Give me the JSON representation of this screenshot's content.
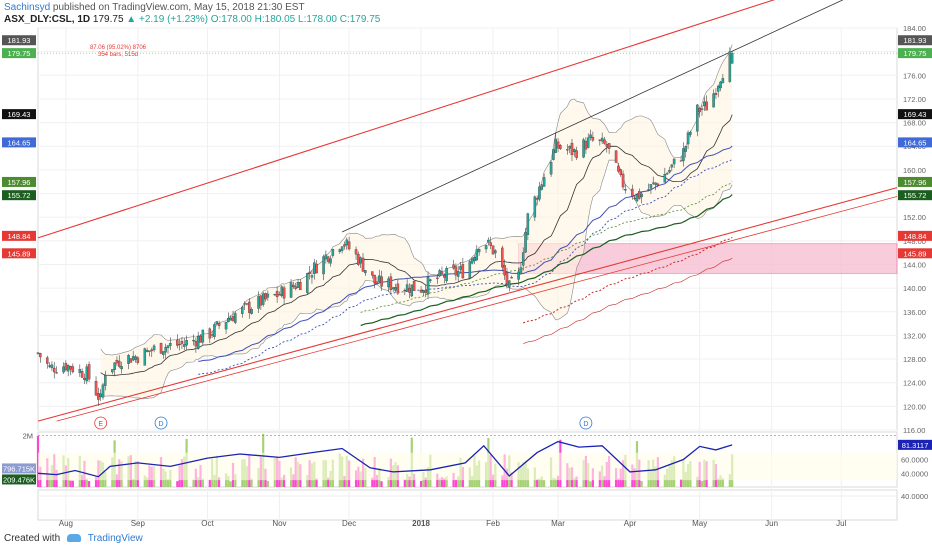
{
  "header": {
    "author": "Sachinsyd",
    "published_text": "published on TradingView.com, May 15, 2018 21:30 EST",
    "symbol": "ASX_DLY:CSL, 1D",
    "last": "179.75",
    "change_arrow": "▲",
    "change": "+2.19 (+1.23%)",
    "o": "O:178.00",
    "h": "H:180.05",
    "l": "L:178.00",
    "c": "C:179.75"
  },
  "footer": {
    "created_with": "Created with",
    "brand": "TradingView"
  },
  "measure": {
    "line1": "87.06 (95.02%) 8706",
    "line2": "354 bars, 515d"
  },
  "colors": {
    "up": "#26a69a",
    "down": "#ef5350",
    "channel": "#e53935",
    "trend": "#333333",
    "sma_blue": "#3f51b5",
    "sma_green": "#1b5e20",
    "bb": "#333333",
    "zone": "#f8bbd0",
    "rsi": "#1a23b6",
    "vol_pink": "#ff33cc",
    "vol_green": "#9ccc65"
  },
  "chart_data": {
    "type": "candlestick",
    "ylim": [
      116,
      184
    ],
    "x_range": [
      "2017-07-20",
      "2018-07-25"
    ],
    "price_ticks": [
      116,
      120,
      124,
      128,
      132,
      136,
      140,
      144,
      148,
      152,
      156,
      160,
      164,
      168,
      172,
      176,
      180,
      184
    ],
    "price_tick_labels": [
      "116.00",
      "120.00",
      "124.00",
      "128.00",
      "132.00",
      "136.00",
      "140.00",
      "144.00",
      "148.00",
      "152.00",
      "156.00",
      "160.00",
      "164.00",
      "168.00",
      "172.00",
      "176.00",
      "180.00",
      "184.00"
    ],
    "month_labels": [
      {
        "date": "2017-08-01",
        "label": "Aug"
      },
      {
        "date": "2017-09-01",
        "label": "Sep"
      },
      {
        "date": "2017-10-01",
        "label": "Oct"
      },
      {
        "date": "2017-11-01",
        "label": "Nov"
      },
      {
        "date": "2017-12-01",
        "label": "Dec"
      },
      {
        "date": "2018-01-01",
        "label": "2018"
      },
      {
        "date": "2018-02-01",
        "label": "Feb"
      },
      {
        "date": "2018-03-01",
        "label": "Mar"
      },
      {
        "date": "2018-04-01",
        "label": "Apr"
      },
      {
        "date": "2018-05-01",
        "label": "May"
      },
      {
        "date": "2018-06-01",
        "label": "Jun"
      },
      {
        "date": "2018-07-01",
        "label": "Jul"
      }
    ],
    "close_path": [
      [
        "2017-07-20",
        129.0
      ],
      [
        "2017-07-25",
        126.5
      ],
      [
        "2017-08-01",
        127.0
      ],
      [
        "2017-08-10",
        125.5
      ],
      [
        "2017-08-16",
        121.0
      ],
      [
        "2017-08-18",
        126.0
      ],
      [
        "2017-08-25",
        128.0
      ],
      [
        "2017-09-01",
        128.5
      ],
      [
        "2017-09-10",
        130.0
      ],
      [
        "2017-09-20",
        130.5
      ],
      [
        "2017-10-01",
        132.0
      ],
      [
        "2017-10-10",
        135.0
      ],
      [
        "2017-10-20",
        137.0
      ],
      [
        "2017-11-01",
        139.0
      ],
      [
        "2017-11-10",
        141.0
      ],
      [
        "2017-11-20",
        145.0
      ],
      [
        "2017-11-28",
        148.0
      ],
      [
        "2017-12-05",
        145.0
      ],
      [
        "2017-12-12",
        141.0
      ],
      [
        "2017-12-20",
        140.5
      ],
      [
        "2018-01-01",
        140.0
      ],
      [
        "2018-01-10",
        142.0
      ],
      [
        "2018-01-20",
        143.0
      ],
      [
        "2018-01-27",
        148.5
      ],
      [
        "2018-02-02",
        146.0
      ],
      [
        "2018-02-08",
        140.0
      ],
      [
        "2018-02-12",
        142.0
      ],
      [
        "2018-02-16",
        152.0
      ],
      [
        "2018-02-22",
        158.0
      ],
      [
        "2018-02-28",
        164.0
      ],
      [
        "2018-03-08",
        163.0
      ],
      [
        "2018-03-15",
        165.0
      ],
      [
        "2018-03-22",
        164.0
      ],
      [
        "2018-03-28",
        158.0
      ],
      [
        "2018-04-04",
        155.5
      ],
      [
        "2018-04-10",
        157.0
      ],
      [
        "2018-04-18",
        160.0
      ],
      [
        "2018-04-24",
        163.0
      ],
      [
        "2018-04-30",
        170.0
      ],
      [
        "2018-05-05",
        171.0
      ],
      [
        "2018-05-10",
        176.0
      ],
      [
        "2018-05-15",
        179.75
      ]
    ],
    "price_boxes": [
      {
        "value": 181.93,
        "label": "181.93",
        "color": "#555555"
      },
      {
        "value": 179.75,
        "label": "179.75",
        "color": "#4caf50"
      },
      {
        "value": 169.43,
        "label": "169.43",
        "color": "#111111"
      },
      {
        "value": 164.65,
        "label": "164.65",
        "color": "#3f6ad8"
      },
      {
        "value": 157.96,
        "label": "157.96",
        "color": "#4c8c2f"
      },
      {
        "value": 155.72,
        "label": "155.72",
        "color": "#1b5e20"
      },
      {
        "value": 148.84,
        "label": "148.84",
        "color": "#e53935"
      },
      {
        "value": 145.89,
        "label": "145.89",
        "color": "#e53935"
      }
    ],
    "zone": {
      "from": "2018-02-12",
      "to": "2018-07-25",
      "low": 142.5,
      "high": 147.5
    },
    "events": [
      {
        "date": "2017-08-16",
        "label": "E",
        "kind": "earnings"
      },
      {
        "date": "2017-09-11",
        "label": "D",
        "kind": "dividend"
      },
      {
        "date": "2018-03-13",
        "label": "D",
        "kind": "dividend"
      }
    ],
    "lower_pane": {
      "ylim": [
        20,
        100
      ],
      "rsi_last": {
        "value": 81.3117,
        "label": "81.3117"
      },
      "ticks": [
        {
          "value": 40,
          "label": "40.0000"
        },
        {
          "value": 60,
          "label": "60.0000"
        }
      ],
      "volume_labels": [
        {
          "label": "2M",
          "value": 95
        },
        {
          "label": "796.715K",
          "value": 47,
          "color": "#8e9bd1"
        },
        {
          "label": "209.476K",
          "value": 31,
          "color": "#1b5e20"
        }
      ],
      "rsi_path": [
        [
          "2017-07-20",
          40
        ],
        [
          "2017-07-28",
          38
        ],
        [
          "2017-08-05",
          44
        ],
        [
          "2017-08-15",
          35
        ],
        [
          "2017-08-20",
          50
        ],
        [
          "2017-09-01",
          55
        ],
        [
          "2017-09-15",
          50
        ],
        [
          "2017-10-01",
          62
        ],
        [
          "2017-10-15",
          68
        ],
        [
          "2017-11-01",
          63
        ],
        [
          "2017-11-15",
          70
        ],
        [
          "2017-11-28",
          76
        ],
        [
          "2017-12-10",
          48
        ],
        [
          "2017-12-20",
          42
        ],
        [
          "2018-01-05",
          45
        ],
        [
          "2018-01-20",
          55
        ],
        [
          "2018-01-28",
          80
        ],
        [
          "2018-02-08",
          36
        ],
        [
          "2018-02-20",
          70
        ],
        [
          "2018-03-01",
          86
        ],
        [
          "2018-03-10",
          78
        ],
        [
          "2018-03-20",
          80
        ],
        [
          "2018-04-01",
          42
        ],
        [
          "2018-04-12",
          45
        ],
        [
          "2018-04-24",
          60
        ],
        [
          "2018-05-01",
          79
        ],
        [
          "2018-05-08",
          74
        ],
        [
          "2018-05-15",
          81.3
        ]
      ]
    },
    "bottom_pane": {
      "ticks": [
        {
          "value": 40,
          "label": "40.0000"
        }
      ]
    }
  }
}
